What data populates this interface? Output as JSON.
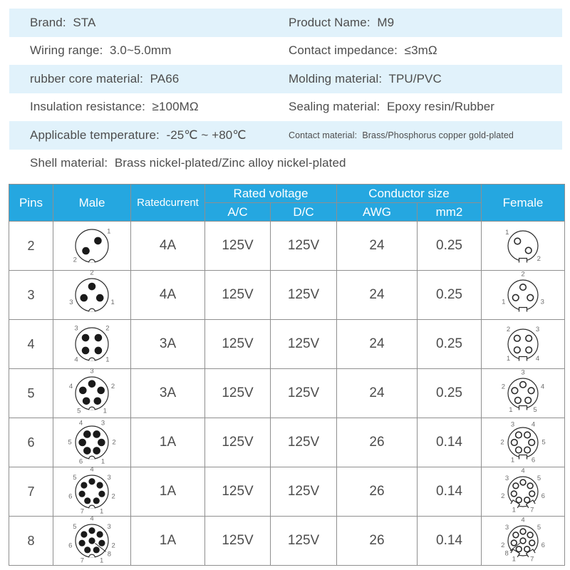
{
  "colors": {
    "header_bg": "#25A7E0",
    "band_bg": "#E1F2FB",
    "text": "#4D4D4D",
    "border": "#8F8F8F",
    "header_text": "#FFFFFF",
    "diagram_stroke": "#2B2B2B",
    "diagram_label": "#6E6E6E",
    "pin_fill": "#1A1A1A"
  },
  "specs": [
    {
      "highlight": true,
      "cells": [
        {
          "label": "Brand",
          "value": "STA"
        },
        {
          "label": "Product Name",
          "value": "M9"
        }
      ]
    },
    {
      "highlight": false,
      "cells": [
        {
          "label": "Wiring range",
          "value": "3.0~5.0mm"
        },
        {
          "label": "Contact impedance",
          "value": "≤3mΩ"
        }
      ]
    },
    {
      "highlight": true,
      "cells": [
        {
          "label": "rubber core material",
          "value": "PA66"
        },
        {
          "label": "Molding material",
          "value": "TPU/PVC"
        }
      ]
    },
    {
      "highlight": false,
      "cells": [
        {
          "label": "Insulation resistance",
          "value": "≥100MΩ"
        },
        {
          "label": "Sealing material",
          "value": "Epoxy resin/Rubber"
        }
      ]
    },
    {
      "highlight": true,
      "cells": [
        {
          "label": "Applicable temperature",
          "value": "-25℃ ~ +80℃"
        },
        {
          "label": "Contact material",
          "value": "Brass/Phosphorus copper gold-plated",
          "small": true
        }
      ]
    },
    {
      "highlight": false,
      "cells": [
        {
          "label": "Shell material",
          "value": "Brass nickel-plated/Zinc alloy nickel-plated"
        }
      ]
    }
  ],
  "table": {
    "header": {
      "pins": "Pins",
      "male": "Male",
      "rated_current": "Ratedcurrent",
      "rated_voltage": "Rated voltage",
      "ac": "A/C",
      "dc": "D/C",
      "conductor_size": "Conductor size",
      "awg": "AWG",
      "mm2": "mm2",
      "female": "Female"
    },
    "rows": [
      {
        "pins": "2",
        "rated_current": "4A",
        "ac": "125V",
        "dc": "125V",
        "awg": "24",
        "mm2": "0.25",
        "layout": {
          "frac": 0.48,
          "female_notches": [
            0
          ],
          "pins": [
            {
              "n": "1",
              "a": 50
            },
            {
              "n": "2",
              "a": 230
            }
          ]
        }
      },
      {
        "pins": "3",
        "rated_current": "4A",
        "ac": "125V",
        "dc": "125V",
        "awg": "24",
        "mm2": "0.25",
        "layout": {
          "frac": 0.52,
          "female_notches": [
            0
          ],
          "pins": [
            {
              "n": "2",
              "a": 0
            },
            {
              "n": "1",
              "a": 110
            },
            {
              "n": "3",
              "a": 250
            }
          ]
        }
      },
      {
        "pins": "4",
        "rated_current": "3A",
        "ac": "125V",
        "dc": "125V",
        "awg": "24",
        "mm2": "0.25",
        "layout": {
          "frac": 0.55,
          "female_notches": [
            0
          ],
          "pins": [
            {
              "n": "3",
              "a": 315
            },
            {
              "n": "2",
              "a": 45
            },
            {
              "n": "1",
              "a": 135
            },
            {
              "n": "4",
              "a": 225
            }
          ]
        }
      },
      {
        "pins": "5",
        "rated_current": "3A",
        "ac": "125V",
        "dc": "125V",
        "awg": "24",
        "mm2": "0.25",
        "layout": {
          "frac": 0.58,
          "female_notches": [
            0
          ],
          "pins": [
            {
              "n": "3",
              "a": 0
            },
            {
              "n": "2",
              "a": 72
            },
            {
              "n": "1",
              "a": 144
            },
            {
              "n": "5",
              "a": 216
            },
            {
              "n": "4",
              "a": 288
            }
          ]
        }
      },
      {
        "pins": "6",
        "rated_current": "1A",
        "ac": "125V",
        "dc": "125V",
        "awg": "26",
        "mm2": "0.14",
        "layout": {
          "frac": 0.58,
          "female_notches": [
            0
          ],
          "pins": [
            {
              "n": "3",
              "a": 30
            },
            {
              "n": "2",
              "a": 90
            },
            {
              "n": "1",
              "a": 150
            },
            {
              "n": "6",
              "a": 210
            },
            {
              "n": "5",
              "a": 270
            },
            {
              "n": "4",
              "a": 330
            }
          ]
        }
      },
      {
        "pins": "7",
        "rated_current": "1A",
        "ac": "125V",
        "dc": "125V",
        "awg": "26",
        "mm2": "0.14",
        "layout": {
          "frac": 0.62,
          "female_notches": [
            -32,
            32
          ],
          "pins": [
            {
              "n": "4",
              "a": 0
            },
            {
              "n": "3",
              "a": 51
            },
            {
              "n": "2",
              "a": 103
            },
            {
              "n": "1",
              "a": 154
            },
            {
              "n": "7",
              "a": 206
            },
            {
              "n": "6",
              "a": 257
            },
            {
              "n": "5",
              "a": 309
            }
          ]
        }
      },
      {
        "pins": "8",
        "rated_current": "1A",
        "ac": "125V",
        "dc": "125V",
        "awg": "26",
        "mm2": "0.14",
        "layout": {
          "frac": 0.62,
          "female_notches": [
            -32,
            32
          ],
          "pins": [
            {
              "n": "4",
              "a": 0
            },
            {
              "n": "3",
              "a": 51
            },
            {
              "n": "2",
              "a": 103
            },
            {
              "n": "1",
              "a": 154
            },
            {
              "n": "7",
              "a": 206
            },
            {
              "n": "6",
              "a": 257
            },
            {
              "n": "5",
              "a": 309
            },
            {
              "n": "8",
              "center": true,
              "label_a": 128
            }
          ]
        }
      }
    ]
  }
}
